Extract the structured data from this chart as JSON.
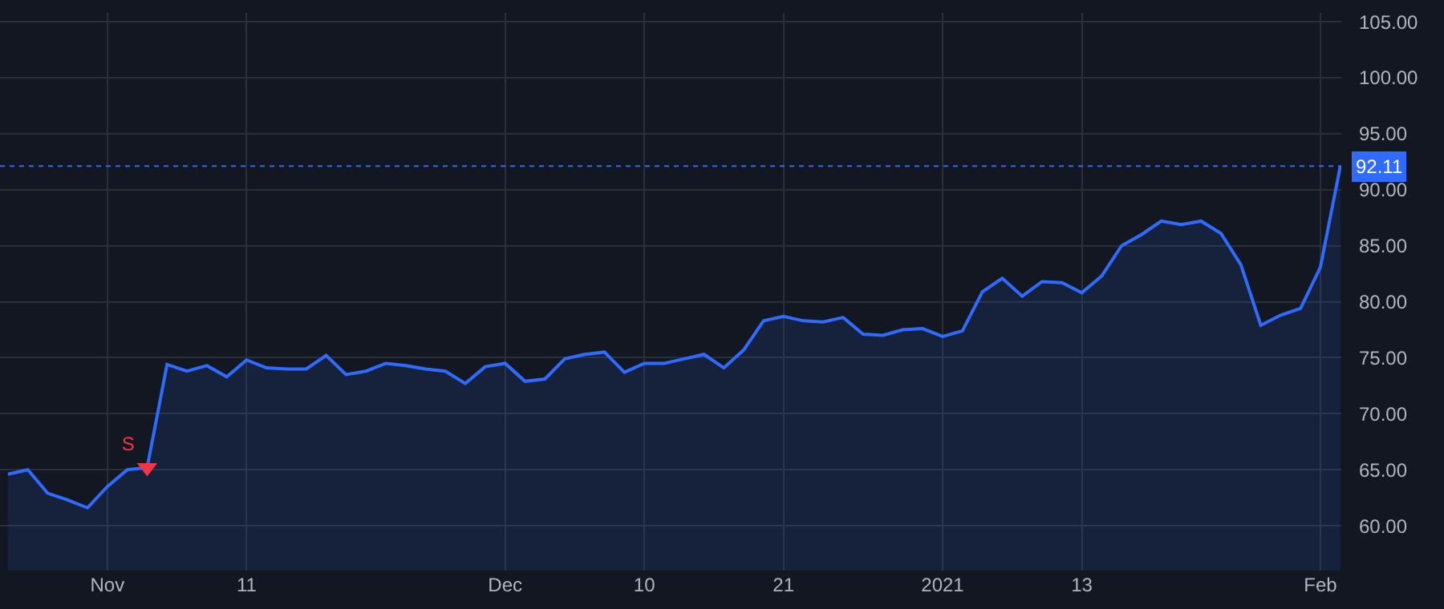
{
  "chart_data": {
    "type": "area",
    "categories": [
      null,
      null,
      null,
      null,
      null,
      "Nov",
      null,
      null,
      null,
      null,
      null,
      null,
      "11",
      null,
      null,
      null,
      null,
      null,
      null,
      null,
      null,
      null,
      null,
      null,
      null,
      "Dec",
      null,
      null,
      null,
      null,
      null,
      null,
      "10",
      null,
      null,
      null,
      null,
      null,
      null,
      "21",
      null,
      null,
      null,
      null,
      null,
      null,
      null,
      "2021",
      null,
      null,
      null,
      null,
      null,
      null,
      "13",
      null,
      null,
      null,
      null,
      null,
      null,
      null,
      null,
      null,
      null,
      null,
      "Feb",
      null
    ],
    "series": [
      {
        "color": "#2f6bff",
        "values": [
          64.6,
          65.0,
          62.9,
          62.3,
          61.6,
          63.5,
          65.0,
          65.2,
          74.4,
          73.8,
          74.3,
          73.3,
          74.8,
          74.1,
          74.0,
          74.0,
          75.2,
          73.5,
          73.8,
          74.5,
          74.3,
          74.0,
          73.8,
          72.7,
          74.2,
          74.5,
          72.9,
          73.1,
          74.9,
          75.3,
          75.5,
          73.7,
          74.5,
          74.5,
          74.9,
          75.3,
          74.1,
          75.7,
          78.3,
          78.7,
          78.3,
          78.2,
          78.6,
          77.1,
          77.0,
          77.5,
          77.6,
          76.9,
          77.4,
          80.9,
          82.1,
          80.5,
          81.8,
          81.7,
          80.8,
          82.3,
          85.0,
          86.0,
          87.2,
          86.9,
          87.2,
          86.1,
          83.3,
          77.9,
          78.8,
          79.4,
          83.1,
          92.11
        ]
      },
      {
        "type": "scatter",
        "name": "S",
        "color": "#f23645",
        "marker": "triangle",
        "values": [
          null,
          null,
          null,
          null,
          null,
          null,
          null,
          65.2,
          null,
          null,
          null,
          null,
          null,
          null,
          null,
          null,
          null,
          null,
          null,
          null,
          null,
          null,
          null,
          null,
          null,
          null,
          null,
          null,
          null,
          null,
          null,
          null,
          null,
          null,
          null,
          null,
          null,
          null,
          null,
          null,
          null,
          null,
          null,
          null,
          null,
          null,
          null,
          null,
          null,
          null,
          null,
          null,
          null,
          null,
          null,
          null,
          null,
          null,
          null,
          null,
          null,
          null,
          null,
          null,
          null,
          null,
          null,
          null
        ]
      }
    ],
    "ylim": [
      56.0,
      105.8
    ],
    "yticks": [
      {
        "value": 60,
        "label": "60.00"
      },
      {
        "value": 65,
        "label": "65.00"
      },
      {
        "value": 70,
        "label": "70.00"
      },
      {
        "value": 75,
        "label": "75.00"
      },
      {
        "value": 80,
        "label": "80.00"
      },
      {
        "value": 85,
        "label": "85.00"
      },
      {
        "value": 90,
        "label": "90.00"
      },
      {
        "value": 95,
        "label": "95.00"
      },
      {
        "value": 100,
        "label": "100.00"
      },
      {
        "value": 105,
        "label": "105.00"
      }
    ],
    "ref_lines": [
      {
        "axis": "y",
        "value": 92.11,
        "label": "92.11",
        "color": "#2f6bff",
        "line_style": "dotted"
      }
    ],
    "grid": true
  }
}
